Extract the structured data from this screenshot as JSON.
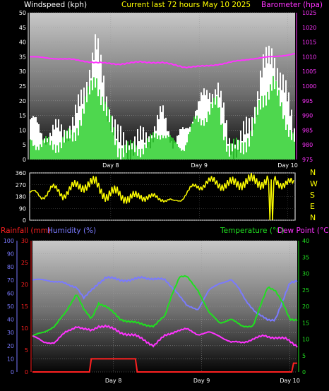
{
  "header": {
    "left_label": "Windspeed (kph)",
    "center_label": "Current last 72 hours May 10 2025",
    "right_label": "Barometer (hpa)"
  },
  "dir_letters": [
    "N",
    "W",
    "S",
    "E",
    "N"
  ],
  "bottom_labels": {
    "rain": "Rainfall (mm)",
    "humidity": "Humidity (%)",
    "temperature": "Temperature (°C)",
    "dewpoint": "Dew Point (°C)"
  },
  "x_ticks": [
    "Day 8",
    "Day 9",
    "Day 10"
  ],
  "colors": {
    "wind": "#ffffff",
    "gust": "#2fd02f",
    "barometer": "#ff33ff",
    "direction": "#ffff00",
    "rain": "#ff2020",
    "humidity": "#7a7aff",
    "temperature": "#20e020",
    "dewpoint": "#ff33ff"
  },
  "chart_data": [
    {
      "type": "area",
      "title": "Current last 72 hours May 10 2025",
      "x_ticks": [
        "Day 8",
        "Day 9",
        "Day 10"
      ],
      "left_axis": {
        "label": "Windspeed (kph)",
        "ylim": [
          0,
          50
        ],
        "ticks": [
          0,
          5,
          10,
          15,
          20,
          25,
          30,
          35,
          40,
          45,
          50
        ]
      },
      "right_axis": {
        "label": "Barometer (hpa)",
        "ylim": [
          975,
          1025
        ],
        "ticks": [
          975,
          980,
          985,
          990,
          995,
          1000,
          1005,
          1010,
          1015,
          1020,
          1025
        ]
      },
      "series": [
        {
          "name": "Windspeed (kph)",
          "axis": "left",
          "x": [
            0,
            3,
            6,
            9,
            12,
            15,
            18,
            21,
            24,
            27,
            30,
            33,
            36,
            39,
            42,
            45,
            48,
            51,
            54,
            57,
            60,
            63,
            66,
            69,
            72
          ],
          "values": [
            14,
            9,
            9,
            10,
            12,
            24,
            39,
            20,
            6,
            5,
            6,
            9,
            15,
            7,
            8,
            18,
            21,
            26,
            5,
            6,
            11,
            30,
            36,
            24,
            9
          ]
        },
        {
          "name": "Gust (kph)",
          "axis": "left",
          "x": [
            0,
            3,
            6,
            9,
            12,
            15,
            18,
            21,
            24,
            27,
            30,
            33,
            36,
            39,
            42,
            45,
            48,
            51,
            54,
            57,
            60,
            63,
            66,
            69,
            72
          ],
          "values": [
            7,
            5,
            5,
            6,
            8,
            18,
            28,
            15,
            4,
            3,
            4,
            6,
            10,
            5,
            5,
            13,
            15,
            19,
            3,
            4,
            8,
            20,
            26,
            15,
            6
          ]
        },
        {
          "name": "Barometer (hpa)",
          "axis": "right",
          "x": [
            0,
            6,
            12,
            18,
            24,
            30,
            36,
            42,
            48,
            54,
            60,
            66,
            72
          ],
          "values": [
            1010,
            1009.5,
            1009,
            1008,
            1007.5,
            1008.2,
            1008,
            1006.5,
            1006.8,
            1008,
            1009.3,
            1010,
            1011
          ]
        }
      ]
    },
    {
      "type": "scatter",
      "title": "",
      "x_ticks": [],
      "left_axis": {
        "label": "",
        "ylim": [
          0,
          360
        ],
        "ticks": [
          0,
          90,
          180,
          270,
          360
        ]
      },
      "series": [
        {
          "name": "Wind direction (deg)",
          "x": [
            0,
            3,
            6,
            9,
            12,
            15,
            18,
            21,
            24,
            27,
            30,
            33,
            36,
            39,
            42,
            45,
            48,
            51,
            54,
            57,
            60,
            63,
            66,
            69,
            72
          ],
          "values": [
            210,
            180,
            240,
            200,
            250,
            270,
            280,
            180,
            220,
            150,
            200,
            160,
            180,
            120,
            200,
            250,
            290,
            280,
            270,
            285,
            300,
            290,
            310,
            280,
            270
          ]
        }
      ]
    },
    {
      "type": "line",
      "title": "",
      "x_ticks": [
        "Day 8",
        "Day 9",
        "Day 10"
      ],
      "axes": {
        "rain": {
          "label": "Rainfall (mm)",
          "ylim": [
            0,
            30
          ],
          "ticks": [
            0,
            5,
            10,
            15,
            20,
            25,
            30
          ]
        },
        "humidity": {
          "label": "Humidity (%)",
          "ylim": [
            0,
            100
          ],
          "ticks": [
            0,
            10,
            20,
            30,
            40,
            50,
            60,
            70,
            80,
            90,
            100
          ]
        },
        "temperature": {
          "label": "Temperature (°C)",
          "ylim": [
            0,
            40
          ],
          "ticks": [
            0,
            5,
            10,
            15,
            20,
            25,
            30,
            35,
            40
          ]
        }
      },
      "series": [
        {
          "name": "Rainfall (mm)",
          "axis": "rain",
          "x": [
            0,
            15.5,
            16,
            28,
            28.5,
            70.5,
            71,
            72
          ],
          "values": [
            0,
            0,
            3,
            3,
            0,
            0,
            2,
            2
          ]
        },
        {
          "name": "Humidity (%)",
          "axis": "humidity",
          "x": [
            0,
            4,
            8,
            10,
            12,
            14,
            16,
            18,
            20,
            24,
            27,
            30,
            33,
            36,
            39,
            42,
            45,
            48,
            51,
            54,
            56,
            58,
            61,
            64,
            66,
            68,
            70,
            72
          ],
          "values": [
            70,
            70,
            68,
            66,
            65,
            56,
            62,
            68,
            72,
            70,
            70,
            72,
            71,
            70,
            62,
            50,
            48,
            62,
            68,
            70,
            64,
            55,
            44,
            40,
            40,
            53,
            68,
            70
          ]
        },
        {
          "name": "Temperature (°C)",
          "axis": "temperature",
          "x": [
            0,
            3,
            6,
            9,
            12,
            14,
            16,
            18,
            20,
            24,
            28,
            30,
            33,
            36,
            38,
            40,
            42,
            45,
            48,
            51,
            54,
            57,
            60,
            62,
            64,
            66,
            68,
            70,
            72
          ],
          "values": [
            11,
            12,
            14,
            18,
            24,
            19,
            16,
            21,
            20,
            16,
            15,
            14.5,
            14,
            17,
            24,
            29,
            29,
            25,
            18,
            15,
            16,
            14,
            14,
            20,
            26,
            25,
            21,
            16,
            16
          ]
        },
        {
          "name": "Dew Point (°C)",
          "axis": "temperature",
          "x": [
            0,
            3,
            6,
            9,
            12,
            14,
            16,
            18,
            20,
            24,
            28,
            30,
            33,
            36,
            39,
            42,
            45,
            48,
            51,
            54,
            57,
            60,
            63,
            66,
            69,
            72
          ],
          "values": [
            11,
            9,
            9,
            12,
            14,
            13,
            12.5,
            14,
            14,
            12,
            11,
            10,
            8,
            11,
            12.5,
            13,
            11.5,
            12,
            11,
            9,
            9,
            10,
            11,
            10.5,
            10,
            8
          ]
        }
      ]
    }
  ]
}
